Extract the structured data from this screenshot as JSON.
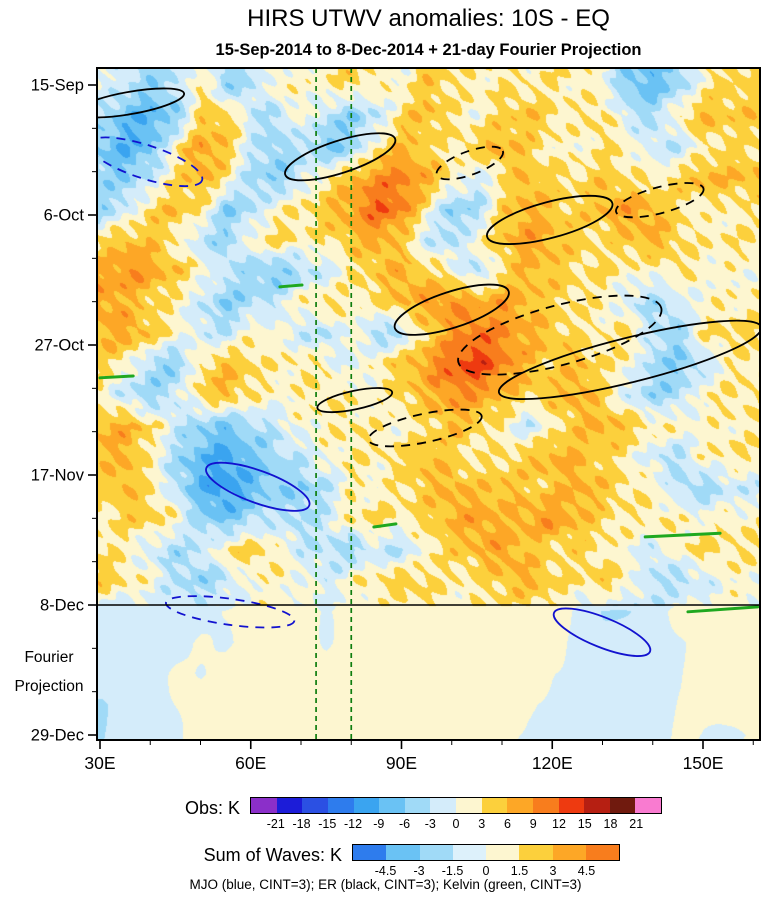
{
  "chart_data": {
    "type": "heatmap",
    "title": "HIRS UTWV anomalies: 10S - EQ",
    "subtitle": "15-Sep-2014 to 8-Dec-2014 + 21-day Fourier Projection",
    "footnote": "MJO (blue, CINT=3); ER (black, CINT=3); Kelvin (green, CINT=3)",
    "x": {
      "unit": "longitude",
      "ticks": [
        30,
        60,
        90,
        120,
        150
      ],
      "tick_labels": [
        "30E",
        "60E",
        "90E",
        "120E",
        "150E"
      ],
      "minor_tick_step": 10,
      "range": [
        29.4,
        161.3
      ]
    },
    "y": {
      "unit": "date",
      "tick_days": [
        0,
        21,
        42,
        63,
        84,
        105
      ],
      "tick_labels": [
        "15-Sep",
        "6-Oct",
        "27-Oct",
        "17-Nov",
        "8-Dec",
        "29-Dec"
      ],
      "minor_tick_step_days": 7,
      "extra_label": [
        "Fourier",
        "Projection"
      ]
    },
    "projection_start_day": 84,
    "colors": {
      "er": "#000000",
      "mjo": "#1212cf",
      "kelvin": "#1fa81f",
      "kelvin_line": "#0e7d0e"
    },
    "colorbars": [
      {
        "label": "Obs: K",
        "levels": [
          -21,
          -18,
          -15,
          -12,
          -9,
          -6,
          -3,
          0,
          3,
          6,
          9,
          12,
          15,
          18,
          21
        ],
        "colors": [
          "#8b2fc9",
          "#1c1cd8",
          "#2b50e3",
          "#2e7ced",
          "#3aa4f0",
          "#6ac2f4",
          "#a0daf7",
          "#d4ecfa",
          "#fdf6d0",
          "#fcd03c",
          "#fda726",
          "#f87d1d",
          "#ee3a10",
          "#b61f12",
          "#701a0e",
          "#f97bd0"
        ]
      },
      {
        "label": "Sum of Waves: K",
        "levels": [
          -4.5,
          -3,
          -1.5,
          0,
          1.5,
          3,
          4.5
        ],
        "colors": [
          "#2e7ced",
          "#6ac2f4",
          "#a0daf7",
          "#ddf1fb",
          "#fdf6d0",
          "#fcd03c",
          "#fda726",
          "#f87d1d"
        ]
      }
    ],
    "grid": {
      "lon_start": 30,
      "lon_step": 5,
      "row_day_start": 0,
      "row_day_step": 5,
      "row_dates": [
        "15-Sep",
        "20-Sep",
        "25-Sep",
        "30-Sep",
        "5-Oct",
        "10-Oct",
        "15-Oct",
        "20-Oct",
        "25-Oct",
        "30-Oct",
        "4-Nov",
        "9-Nov",
        "14-Nov",
        "19-Nov",
        "24-Nov",
        "29-Nov",
        "4-Dec",
        "9-Dec",
        "14-Dec",
        "19-Dec",
        "24-Dec",
        "29-Dec"
      ],
      "values": [
        [
          0,
          -2,
          -5,
          -3,
          3,
          -5,
          -3,
          2,
          1,
          2,
          4,
          2,
          1,
          5,
          3,
          2,
          3,
          2,
          3,
          2,
          1,
          -6,
          -8,
          -5,
          2,
          4
        ],
        [
          -3,
          -8,
          -9,
          -6,
          4,
          6,
          -2,
          -4,
          2,
          -3,
          -6,
          -3,
          4,
          6,
          3,
          1,
          4,
          6,
          3,
          2,
          4,
          -2,
          -4,
          3,
          6,
          5
        ],
        [
          -6,
          -9,
          -7,
          2,
          8,
          5,
          -2,
          -5,
          -3,
          -7,
          -5,
          3,
          6,
          4,
          2,
          5,
          7,
          4,
          2,
          1,
          3,
          2,
          -2,
          -3,
          2,
          3
        ],
        [
          -4,
          -6,
          -2,
          3,
          7,
          3,
          -4,
          -6,
          -2,
          3,
          6,
          9,
          10,
          7,
          3,
          -2,
          3,
          6,
          4,
          3,
          5,
          3,
          2,
          4,
          7,
          6
        ],
        [
          -5,
          -2,
          4,
          6,
          3,
          -6,
          -4,
          2,
          3,
          5,
          8,
          12,
          10,
          2,
          -6,
          -4,
          4,
          7,
          5,
          4,
          6,
          8,
          6,
          3,
          1,
          2
        ],
        [
          3,
          6,
          5,
          2,
          -3,
          -5,
          2,
          4,
          2,
          3,
          5,
          7,
          4,
          -2,
          -4,
          2,
          5,
          8,
          6,
          4,
          3,
          5,
          7,
          4,
          2,
          3
        ],
        [
          7,
          9,
          8,
          5,
          2,
          -2,
          -5,
          -7,
          -4,
          -2,
          3,
          5,
          7,
          4,
          2,
          -4,
          3,
          6,
          5,
          3,
          4,
          2,
          1,
          3,
          2,
          1
        ],
        [
          8,
          6,
          4,
          2,
          -2,
          -6,
          -4,
          -2,
          2,
          4,
          2,
          3,
          6,
          8,
          9,
          7,
          8,
          6,
          4,
          3,
          2,
          -2,
          -4,
          -2,
          1,
          2
        ],
        [
          6,
          8,
          5,
          2,
          -2,
          -3,
          2,
          1,
          -2,
          -4,
          2,
          -5,
          -3,
          4,
          8,
          11,
          9,
          7,
          5,
          3,
          2,
          4,
          -3,
          -5,
          3,
          4
        ],
        [
          4,
          2,
          -4,
          -6,
          3,
          6,
          4,
          2,
          3,
          2,
          -2,
          3,
          5,
          8,
          12,
          14,
          10,
          6,
          4,
          6,
          3,
          2,
          -4,
          -6,
          -3,
          2
        ],
        [
          2,
          -3,
          -5,
          -2,
          4,
          6,
          3,
          1,
          2,
          3,
          2,
          1,
          4,
          6,
          9,
          8,
          6,
          4,
          5,
          7,
          4,
          -2,
          -5,
          -4,
          2,
          3
        ],
        [
          6,
          7,
          4,
          -2,
          -5,
          -7,
          -4,
          -2,
          1,
          2,
          3,
          2,
          1,
          3,
          6,
          4,
          2,
          -3,
          2,
          5,
          7,
          5,
          3,
          2,
          1,
          2
        ],
        [
          5,
          7,
          2,
          -4,
          -8,
          -10,
          -7,
          -4,
          -2,
          1,
          3,
          2,
          4,
          6,
          4,
          2,
          3,
          5,
          7,
          6,
          4,
          2,
          -2,
          -4,
          2,
          3
        ],
        [
          4,
          6,
          3,
          -3,
          -9,
          -11,
          -8,
          -5,
          -6,
          -3,
          2,
          1,
          3,
          5,
          7,
          5,
          6,
          4,
          5,
          7,
          5,
          3,
          2,
          -3,
          -5,
          -2
        ],
        [
          2,
          4,
          5,
          2,
          -5,
          -7,
          -4,
          -2,
          -4,
          -2,
          3,
          4,
          2,
          4,
          6,
          8,
          6,
          7,
          9,
          6,
          4,
          2,
          3,
          2,
          1,
          2
        ],
        [
          3,
          2,
          -2,
          -4,
          -2,
          3,
          5,
          2,
          -2,
          -3,
          -5,
          -2,
          -4,
          2,
          4,
          6,
          8,
          5,
          3,
          4,
          2,
          1,
          -2,
          2,
          4,
          3
        ],
        [
          5,
          3,
          1,
          -3,
          -5,
          -3,
          1,
          2,
          1,
          -2,
          2,
          3,
          5,
          4,
          2,
          3,
          5,
          7,
          4,
          3,
          5,
          2,
          -3,
          -4,
          -2,
          1
        ],
        [
          -2,
          -2,
          -1,
          -2,
          -1,
          0,
          1,
          1,
          0,
          0,
          1,
          1,
          1,
          2,
          2,
          2,
          2,
          2,
          2,
          -1,
          -3,
          -3,
          -2,
          1,
          1,
          1
        ],
        [
          -2,
          -1,
          -1,
          -1,
          0,
          0,
          1,
          1,
          1,
          0,
          1,
          1,
          2,
          2,
          2,
          2,
          2,
          1,
          1,
          -1,
          -2,
          -2,
          -1,
          0,
          1,
          1
        ],
        [
          -2,
          -2,
          -1,
          0,
          0,
          1,
          1,
          1,
          1,
          1,
          1,
          1,
          1,
          2,
          2,
          2,
          1,
          1,
          0,
          0,
          -1,
          -1,
          0,
          0,
          1,
          1
        ],
        [
          -3,
          -2,
          -1,
          0,
          1,
          1,
          1,
          1,
          1,
          1,
          1,
          1,
          1,
          1,
          1,
          1,
          1,
          0,
          0,
          0,
          -1,
          -1,
          -1,
          0,
          0,
          1
        ],
        [
          -3,
          -2,
          -1,
          0,
          1,
          1,
          2,
          1,
          1,
          1,
          1,
          1,
          1,
          1,
          1,
          1,
          0,
          0,
          0,
          -1,
          -1,
          -1,
          -1,
          0,
          0,
          0
        ]
      ]
    },
    "waves": {
      "kelvin_vertical_dashed_lons": [
        73,
        80
      ],
      "er_solid": [
        {
          "lon": 36.0,
          "day": 2.9,
          "rlon": 10.9,
          "rday": 1.8,
          "rot": -10
        },
        {
          "lon": 77.8,
          "day": 11.6,
          "rlon": 11.5,
          "rday": 2.6,
          "rot": -18
        },
        {
          "lon": 119.5,
          "day": 21.8,
          "rlon": 12.9,
          "rday": 2.9,
          "rot": -15
        },
        {
          "lon": 100.0,
          "day": 36.3,
          "rlon": 11.9,
          "rday": 2.9,
          "rot": -18
        },
        {
          "lon": 80.7,
          "day": 50.9,
          "rlon": 7.6,
          "rday": 1.5,
          "rot": -12
        },
        {
          "lon": 135.5,
          "day": 44.4,
          "rlon": 26.9,
          "rday": 3.6,
          "rot": -14
        }
      ],
      "er_dashed": [
        {
          "lon": 103.6,
          "day": 12.6,
          "rlon": 7.0,
          "rday": 1.9,
          "rot": -20
        },
        {
          "lon": 141.4,
          "day": 18.6,
          "rlon": 9.0,
          "rday": 2.1,
          "rot": -15
        },
        {
          "lon": 121.5,
          "day": 40.4,
          "rlon": 20.9,
          "rday": 4.8,
          "rot": -15
        },
        {
          "lon": 94.7,
          "day": 55.4,
          "rlon": 11.5,
          "rday": 2.3,
          "rot": -12
        }
      ],
      "mjo_solid": [
        {
          "lon": 61.4,
          "day": 64.9,
          "rlon": 10.9,
          "rday": 2.6,
          "rot": 20
        },
        {
          "lon": 129.9,
          "day": 88.4,
          "rlon": 10.3,
          "rday": 2.4,
          "rot": 22
        }
      ],
      "mjo_dashed": [
        {
          "lon": 39.0,
          "day": 12.4,
          "rlon": 11.9,
          "rday": 2.7,
          "rot": 18
        },
        {
          "lon": 55.9,
          "day": 85.1,
          "rlon": 12.9,
          "rday": 2.1,
          "rot": 8
        }
      ],
      "kelvin_segments": [
        {
          "lon1": 30.0,
          "day1": 47.3,
          "lon2": 36.6,
          "day2": 47.0
        },
        {
          "lon1": 65.8,
          "day1": 32.6,
          "lon2": 70.2,
          "day2": 32.3
        },
        {
          "lon1": 84.5,
          "day1": 71.4,
          "lon2": 88.9,
          "day2": 70.9
        },
        {
          "lon1": 138.5,
          "day1": 73.0,
          "lon2": 153.4,
          "day2": 72.4
        },
        {
          "lon1": 147.0,
          "day1": 85.1,
          "lon2": 160.9,
          "day2": 84.3
        }
      ]
    }
  }
}
